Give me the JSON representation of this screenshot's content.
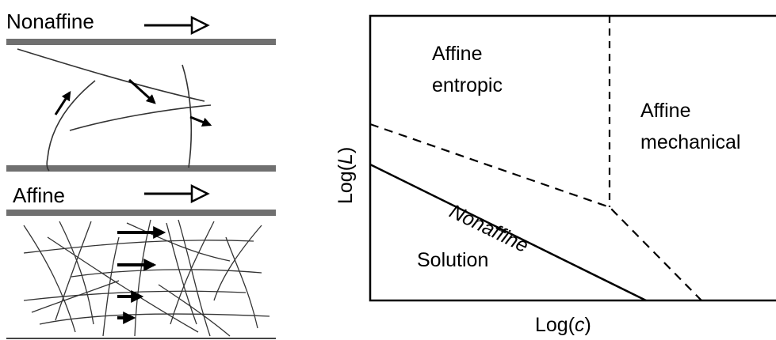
{
  "left_panel": {
    "nonaffine_title": "Nonaffine",
    "affine_title": "Affine"
  },
  "phase_diagram": {
    "region_affine_entropic_line1": "Affine",
    "region_affine_entropic_line2": "entropic",
    "region_affine_mechanical_line1": "Affine",
    "region_affine_mechanical_line2": "mechanical",
    "region_nonaffine": "Nonaffine",
    "region_solution": "Solution",
    "x_axis_label_prefix": "Log(",
    "x_axis_label_var": "c",
    "x_axis_label_suffix": ")",
    "y_axis_label_prefix": "Log(",
    "y_axis_label_var": "L",
    "y_axis_label_suffix": ")"
  },
  "colors": {
    "plate": "#707070",
    "line": "#000000",
    "fiber": "#333333"
  }
}
